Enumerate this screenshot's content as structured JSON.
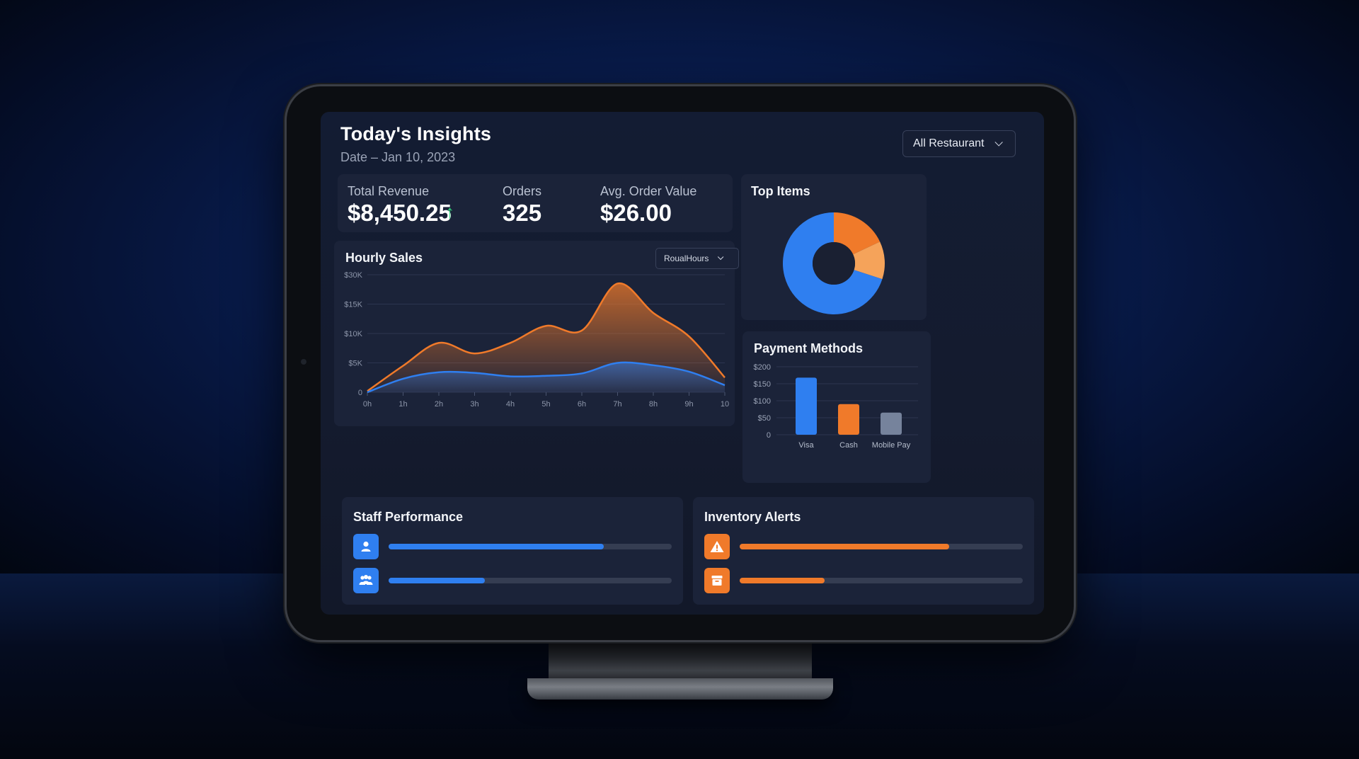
{
  "header": {
    "title": "Today's Insights",
    "date": "Date – Jan 10, 2023",
    "filter": "All Restaurant"
  },
  "stats": {
    "total_revenue": {
      "label": "Total Revenue",
      "value": "$8,450.25",
      "trend": "up"
    },
    "orders": {
      "label": "Orders",
      "value": "325"
    },
    "avg_order": {
      "label": "Avg. Order Value",
      "value": "$26.00"
    }
  },
  "hourly_sales": {
    "title": "Hourly Sales",
    "filter": "RoualHours"
  },
  "top_items": {
    "title": "Top Items"
  },
  "payment_methods": {
    "title": "Payment Methods"
  },
  "staff": {
    "title": "Staff Performance",
    "rows": [
      {
        "icon": "person-icon",
        "progress": 0.76
      },
      {
        "icon": "group-icon",
        "progress": 0.34
      }
    ]
  },
  "inventory": {
    "title": "Inventory Alerts",
    "rows": [
      {
        "icon": "warning-icon",
        "progress": 0.74
      },
      {
        "icon": "box-icon",
        "progress": 0.3
      }
    ]
  },
  "colors": {
    "blue": "#2f7ff0",
    "orange": "#f07a2a",
    "light_orange": "#f5a35a",
    "gray": "#76839c"
  },
  "chart_data": [
    {
      "type": "area",
      "title": "Hourly Sales",
      "x": [
        "0h",
        "1h",
        "2h",
        "3h",
        "4h",
        "5h",
        "6h",
        "7h",
        "8h",
        "9h",
        "10"
      ],
      "y_tick_labels": [
        "0",
        "$5K",
        "$10K",
        "$15K",
        "$30K"
      ],
      "series": [
        {
          "values": [
            0.2,
            4.5,
            8.4,
            6.6,
            8.4,
            11.3,
            10.5,
            18.5,
            13.5,
            9.5,
            2.5
          ]
        },
        {
          "values": [
            0,
            2.3,
            3.4,
            3.3,
            2.7,
            2.8,
            3.2,
            5.0,
            4.6,
            3.5,
            1.2
          ]
        }
      ],
      "ylim_ticks": [
        0,
        20
      ]
    },
    {
      "type": "pie",
      "title": "Top Items",
      "slices": [
        {
          "value": 70,
          "color": "#2f7ff0"
        },
        {
          "value": 18,
          "color": "#f07a2a"
        },
        {
          "value": 12,
          "color": "#f5a35a"
        }
      ],
      "donut": true
    },
    {
      "type": "bar",
      "title": "Payment Methods",
      "categories": [
        "Visa",
        "Cash",
        "Mobile Pay"
      ],
      "values": [
        168,
        90,
        65
      ],
      "colors": [
        "#2f7ff0",
        "#f07a2a",
        "#76839c"
      ],
      "y_tick_labels": [
        "0",
        "$50",
        "$100",
        "$150",
        "$200"
      ],
      "ylim": [
        0,
        200
      ]
    }
  ]
}
